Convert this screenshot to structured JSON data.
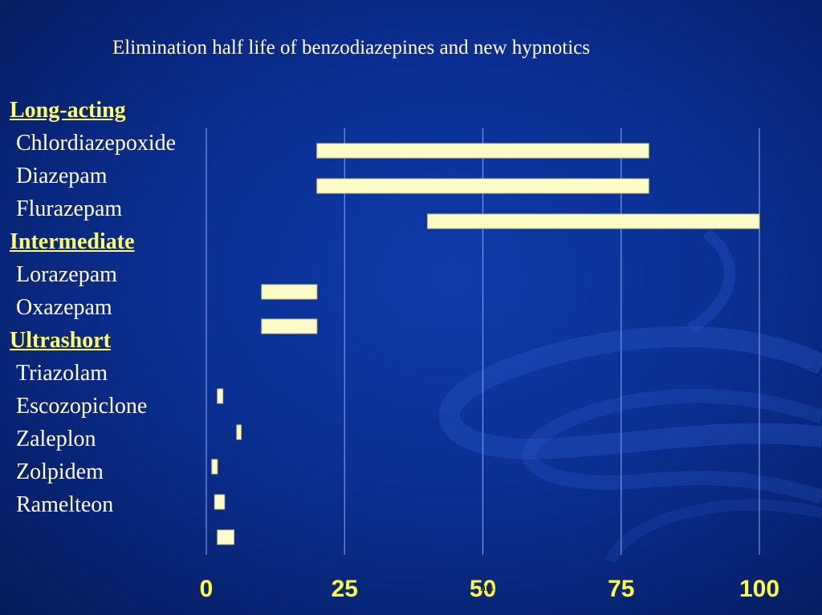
{
  "slide": {
    "title": "Elimination half life of benzodiazepines and new hypnotics"
  },
  "colors": {
    "background": "#0b2f91",
    "bar_fill": "#fdfbc8",
    "group_label": "#ffff66",
    "tick_label": "#ffff33",
    "gridline": "#7f96d6"
  },
  "rows": [
    {
      "kind": "group",
      "label": "Long-acting"
    },
    {
      "kind": "drug",
      "label": "Chlordiazepoxide"
    },
    {
      "kind": "drug",
      "label": "Diazepam"
    },
    {
      "kind": "drug",
      "label": "Flurazepam"
    },
    {
      "kind": "group",
      "label": "Intermediate"
    },
    {
      "kind": "drug",
      "label": "Lorazepam"
    },
    {
      "kind": "drug",
      "label": "Oxazepam"
    },
    {
      "kind": "group",
      "label": "Ultrashort"
    },
    {
      "kind": "drug",
      "label": "Triazolam"
    },
    {
      "kind": "drug",
      "label": "Escozopiclone"
    },
    {
      "kind": "drug",
      "label": "Zaleplon"
    },
    {
      "kind": "drug",
      "label": "Zolpidem"
    },
    {
      "kind": "drug",
      "label": "Ramelteon"
    }
  ],
  "chart_data": {
    "type": "bar",
    "orientation": "horizontal-range",
    "title": "Elimination half life of benzodiazepines and new hypnotics",
    "xlabel": "hrs",
    "xlim": [
      0,
      100
    ],
    "xticks": [
      "0",
      "25",
      "50",
      "75",
      "100"
    ],
    "grid": true,
    "series": [
      {
        "ranges": [
          {
            "start": 20,
            "end": 80
          },
          {
            "start": 20,
            "end": 80
          },
          {
            "start": 40,
            "end": 100
          },
          {
            "start": 10,
            "end": 20
          },
          {
            "start": 10,
            "end": 20
          },
          {
            "start": 2,
            "end": 3
          },
          {
            "start": 5.5,
            "end": 6.3
          },
          {
            "start": 1,
            "end": 2
          },
          {
            "start": 1.5,
            "end": 3.3
          },
          {
            "start": 2,
            "end": 5
          }
        ]
      }
    ]
  }
}
